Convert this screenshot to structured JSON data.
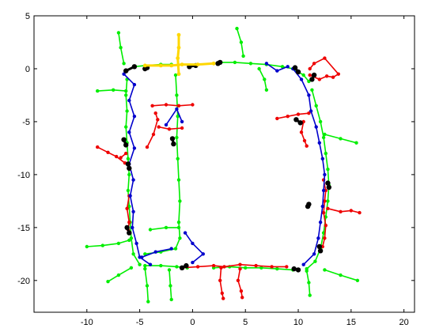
{
  "chart_data": {
    "type": "scatter",
    "title": "",
    "xlabel": "",
    "ylabel": "",
    "xlim": [
      -15,
      21
    ],
    "ylim": [
      -23,
      5
    ],
    "xticks": [
      -10,
      -5,
      0,
      5,
      10,
      15,
      20
    ],
    "yticks": [
      5,
      0,
      -5,
      -10,
      -15,
      -20
    ],
    "xtick_labels": [
      "-10",
      "-5",
      "0",
      "5",
      "10",
      "15",
      "20"
    ],
    "ytick_labels": [
      "5",
      "0",
      "-5",
      "-10",
      "-15",
      "-20"
    ],
    "grid": false,
    "legend": "none",
    "colors": {
      "green": "#00ee00",
      "red": "#ee0000",
      "blue": "#0000cc",
      "black": "#000000",
      "yellow": "#ffd700"
    },
    "series": [
      {
        "color": "green",
        "paths": [
          [
            [
              -6.2,
              -1.0
            ],
            [
              -6.3,
              -2.5
            ],
            [
              -6.2,
              -4.0
            ],
            [
              -6.3,
              -5.5
            ],
            [
              -6.2,
              -7.0
            ],
            [
              -6.1,
              -8.5
            ],
            [
              -6.0,
              -10.0
            ],
            [
              -6.1,
              -11.5
            ],
            [
              -6.0,
              -13.0
            ],
            [
              -5.9,
              -14.5
            ],
            [
              -5.8,
              -16.0
            ],
            [
              -5.6,
              -17.5
            ],
            [
              -5.0,
              -18.5
            ]
          ],
          [
            [
              -5.5,
              0.2
            ],
            [
              -4.5,
              0.3
            ],
            [
              -3.0,
              0.4
            ],
            [
              -2.0,
              0.4
            ]
          ],
          [
            [
              2.5,
              0.6
            ],
            [
              4.0,
              0.6
            ],
            [
              5.5,
              0.5
            ],
            [
              7.0,
              0.4
            ],
            [
              8.5,
              0.2
            ],
            [
              9.5,
              0.0
            ],
            [
              10.5,
              -0.6
            ],
            [
              11.0,
              -1.2
            ]
          ],
          [
            [
              11.3,
              -2.0
            ],
            [
              11.7,
              -3.5
            ],
            [
              12.1,
              -5.0
            ],
            [
              12.4,
              -6.5
            ],
            [
              12.6,
              -8.0
            ],
            [
              12.8,
              -9.5
            ],
            [
              12.9,
              -11.0
            ],
            [
              12.8,
              -12.5
            ],
            [
              12.6,
              -14.0
            ],
            [
              12.4,
              -15.5
            ],
            [
              12.1,
              -17.0
            ],
            [
              11.6,
              -18.2
            ],
            [
              10.8,
              -18.9
            ]
          ],
          [
            [
              9.5,
              -19.0
            ],
            [
              8.0,
              -18.9
            ],
            [
              6.5,
              -18.8
            ],
            [
              5.0,
              -18.8
            ],
            [
              3.5,
              -18.7
            ],
            [
              2.0,
              -18.8
            ]
          ],
          [
            [
              -0.5,
              -18.8
            ],
            [
              -1.5,
              -18.7
            ],
            [
              -3.0,
              -18.6
            ],
            [
              -4.5,
              -18.6
            ]
          ],
          [
            [
              -1.6,
              -0.6
            ],
            [
              -1.5,
              -2.5
            ],
            [
              -1.4,
              -4.5
            ],
            [
              -1.5,
              -6.5
            ],
            [
              -1.4,
              -8.5
            ],
            [
              -1.3,
              -10.5
            ],
            [
              -1.2,
              -12.5
            ],
            [
              -1.3,
              -14.5
            ],
            [
              -1.2,
              -16.0
            ],
            [
              -1.6,
              -17.0
            ],
            [
              -3.0,
              -17.3
            ],
            [
              -4.5,
              -17.5
            ]
          ],
          [
            [
              -7.0,
              3.4
            ],
            [
              -6.8,
              2.0
            ],
            [
              -6.5,
              0.5
            ]
          ],
          [
            [
              -9.0,
              -2.1
            ],
            [
              -7.5,
              -2.0
            ],
            [
              -6.3,
              -2.1
            ]
          ],
          [
            [
              4.2,
              3.8
            ],
            [
              4.6,
              2.5
            ],
            [
              4.8,
              1.2
            ]
          ],
          [
            [
              7.0,
              -2.0
            ],
            [
              6.8,
              -1.0
            ],
            [
              6.3,
              0.0
            ]
          ],
          [
            [
              15.5,
              -7.0
            ],
            [
              14.0,
              -6.6
            ],
            [
              12.5,
              -6.2
            ]
          ],
          [
            [
              -10.0,
              -16.8
            ],
            [
              -8.5,
              -16.7
            ],
            [
              -7.0,
              -16.5
            ],
            [
              -6.0,
              -16.2
            ]
          ],
          [
            [
              -8.0,
              -20.1
            ],
            [
              -7.0,
              -19.5
            ],
            [
              -5.8,
              -18.8
            ]
          ],
          [
            [
              -4.2,
              -22.0
            ],
            [
              -4.3,
              -20.5
            ],
            [
              -4.5,
              -18.9
            ]
          ],
          [
            [
              -2.0,
              -21.8
            ],
            [
              -2.1,
              -20.5
            ],
            [
              -2.2,
              -19.0
            ]
          ],
          [
            [
              11.1,
              -21.4
            ],
            [
              11.0,
              -20.2
            ],
            [
              10.8,
              -19.1
            ]
          ],
          [
            [
              15.6,
              -20.0
            ],
            [
              14.0,
              -19.5
            ],
            [
              12.5,
              -19.0
            ]
          ],
          [
            [
              -4.0,
              -15.2
            ],
            [
              -2.5,
              -15.0
            ],
            [
              -1.3,
              -15.0
            ]
          ]
        ]
      },
      {
        "color": "red",
        "paths": [
          [
            [
              -9.0,
              -7.4
            ],
            [
              -8.0,
              -7.9
            ],
            [
              -7.2,
              -8.3
            ],
            [
              -6.4,
              -8.9
            ]
          ],
          [
            [
              -6.0,
              -12.0
            ],
            [
              -6.2,
              -13.2
            ],
            [
              -6.0,
              -14.5
            ],
            [
              -6.1,
              -15.2
            ]
          ],
          [
            [
              -4.3,
              -7.4
            ],
            [
              -3.7,
              -6.2
            ],
            [
              -3.3,
              -4.8
            ],
            [
              -3.5,
              -4.2
            ]
          ],
          [
            [
              -3.8,
              -3.5
            ],
            [
              -2.5,
              -3.4
            ],
            [
              -1.3,
              -3.5
            ],
            [
              0.0,
              -3.4
            ]
          ],
          [
            [
              -3.2,
              -5.5
            ],
            [
              -2.2,
              -5.7
            ],
            [
              -1.0,
              -5.6
            ]
          ],
          [
            [
              11.1,
              -0.6
            ],
            [
              12.0,
              -1.0
            ],
            [
              12.7,
              -0.7
            ],
            [
              13.3,
              -0.8
            ],
            [
              13.8,
              -0.5
            ],
            [
              12.5,
              1.0
            ],
            [
              11.5,
              0.5
            ],
            [
              11.1,
              0.0
            ]
          ],
          [
            [
              8.0,
              -4.7
            ],
            [
              9.0,
              -4.5
            ],
            [
              10.0,
              -4.3
            ],
            [
              11.0,
              -4.2
            ]
          ],
          [
            [
              10.5,
              -5.0
            ],
            [
              10.3,
              -6.0
            ],
            [
              10.6,
              -6.8
            ],
            [
              10.8,
              -7.3
            ]
          ],
          [
            [
              12.4,
              -10.5
            ],
            [
              12.6,
              -11.5
            ],
            [
              12.5,
              -12.5
            ],
            [
              12.4,
              -13.6
            ],
            [
              12.6,
              -14.8
            ],
            [
              12.5,
              -16.0
            ],
            [
              12.3,
              -16.8
            ]
          ],
          [
            [
              12.8,
              -13.2
            ],
            [
              14.0,
              -13.5
            ],
            [
              15.0,
              -13.4
            ],
            [
              15.8,
              -13.6
            ]
          ],
          [
            [
              -1.0,
              -18.8
            ],
            [
              0.5,
              -18.7
            ],
            [
              2.0,
              -18.6
            ],
            [
              3.0,
              -18.7
            ],
            [
              4.5,
              -18.5
            ],
            [
              6.0,
              -18.6
            ],
            [
              7.5,
              -18.7
            ],
            [
              8.9,
              -18.7
            ]
          ],
          [
            [
              2.7,
              -18.8
            ],
            [
              2.6,
              -20.0
            ],
            [
              2.8,
              -21.2
            ],
            [
              2.9,
              -21.7
            ]
          ],
          [
            [
              4.5,
              -18.9
            ],
            [
              4.3,
              -20.0
            ],
            [
              4.6,
              -21.0
            ],
            [
              4.7,
              -21.6
            ]
          ],
          [
            [
              -6.8,
              -8.4
            ],
            [
              -6.3,
              -8.0
            ]
          ]
        ]
      },
      {
        "color": "blue",
        "paths": [
          [
            [
              -6.5,
              -0.5
            ],
            [
              -5.5,
              -1.5
            ],
            [
              -6.0,
              -3.0
            ],
            [
              -5.5,
              -4.5
            ],
            [
              -6.0,
              -6.0
            ],
            [
              -5.5,
              -7.5
            ],
            [
              -6.0,
              -9.0
            ],
            [
              -5.6,
              -10.5
            ],
            [
              -5.9,
              -12.0
            ],
            [
              -5.6,
              -13.5
            ],
            [
              -5.7,
              -15.0
            ],
            [
              -5.3,
              -16.5
            ],
            [
              -5.0,
              -17.8
            ],
            [
              -4.0,
              -18.5
            ]
          ],
          [
            [
              9.5,
              0.0
            ],
            [
              10.3,
              -1.0
            ],
            [
              11.0,
              -2.5
            ],
            [
              11.2,
              -4.0
            ],
            [
              11.7,
              -5.5
            ],
            [
              12.0,
              -7.0
            ],
            [
              12.3,
              -8.5
            ],
            [
              12.5,
              -10.0
            ],
            [
              12.4,
              -11.5
            ],
            [
              12.3,
              -13.0
            ],
            [
              12.1,
              -14.5
            ],
            [
              11.9,
              -16.0
            ],
            [
              11.5,
              -17.5
            ],
            [
              10.5,
              -18.5
            ]
          ],
          [
            [
              -0.7,
              -15.5
            ],
            [
              0.0,
              -16.5
            ],
            [
              1.0,
              -17.5
            ],
            [
              0.0,
              -18.3
            ]
          ],
          [
            [
              -2.5,
              -5.3
            ],
            [
              -1.5,
              -3.8
            ],
            [
              -1.0,
              -5.0
            ]
          ],
          [
            [
              7.0,
              0.5
            ],
            [
              8.0,
              -0.2
            ],
            [
              9.0,
              0.2
            ]
          ],
          [
            [
              -4.8,
              -17.8
            ],
            [
              -3.5,
              -17.3
            ],
            [
              -2.0,
              -17.0
            ]
          ]
        ]
      },
      {
        "color": "black",
        "paths": [
          [
            [
              -6.3,
              -0.2
            ],
            [
              -5.5,
              0.2
            ]
          ],
          [
            [
              -4.5,
              0.0
            ],
            [
              -4.3,
              0.1
            ]
          ],
          [
            [
              -0.3,
              0.2
            ],
            [
              0.3,
              0.3
            ]
          ],
          [
            [
              2.4,
              0.5
            ],
            [
              2.6,
              0.6
            ]
          ],
          [
            [
              9.7,
              0.1
            ],
            [
              10.0,
              -0.3
            ]
          ],
          [
            [
              11.3,
              -1.0
            ],
            [
              11.5,
              -0.6
            ]
          ],
          [
            [
              9.8,
              -4.8
            ],
            [
              10.2,
              -5.1
            ]
          ],
          [
            [
              -6.5,
              -6.7
            ],
            [
              -6.3,
              -7.2
            ]
          ],
          [
            [
              -6.1,
              -9.0
            ],
            [
              -6.0,
              -9.4
            ]
          ],
          [
            [
              -1.9,
              -6.6
            ],
            [
              -1.8,
              -7.1
            ]
          ],
          [
            [
              12.8,
              -10.8
            ],
            [
              12.9,
              -11.2
            ]
          ],
          [
            [
              -6.2,
              -15.0
            ],
            [
              -6.0,
              -15.5
            ]
          ],
          [
            [
              12.0,
              -16.8
            ],
            [
              12.1,
              -17.2
            ]
          ],
          [
            [
              9.6,
              -18.9
            ],
            [
              10.0,
              -19.0
            ]
          ],
          [
            [
              -0.6,
              -18.6
            ],
            [
              -1.0,
              -18.8
            ]
          ],
          [
            [
              11.0,
              -12.8
            ],
            [
              10.9,
              -13.0
            ]
          ]
        ]
      },
      {
        "color": "yellow",
        "paths": [
          [
            [
              -1.3,
              3.2
            ],
            [
              -1.3,
              2.0
            ],
            [
              -1.4,
              1.0
            ],
            [
              -1.3,
              -0.5
            ]
          ],
          [
            [
              -4.5,
              0.3
            ],
            [
              -3.0,
              0.3
            ],
            [
              -2.0,
              0.3
            ],
            [
              -1.0,
              0.4
            ],
            [
              0.5,
              0.4
            ],
            [
              2.0,
              0.5
            ]
          ]
        ]
      }
    ]
  }
}
